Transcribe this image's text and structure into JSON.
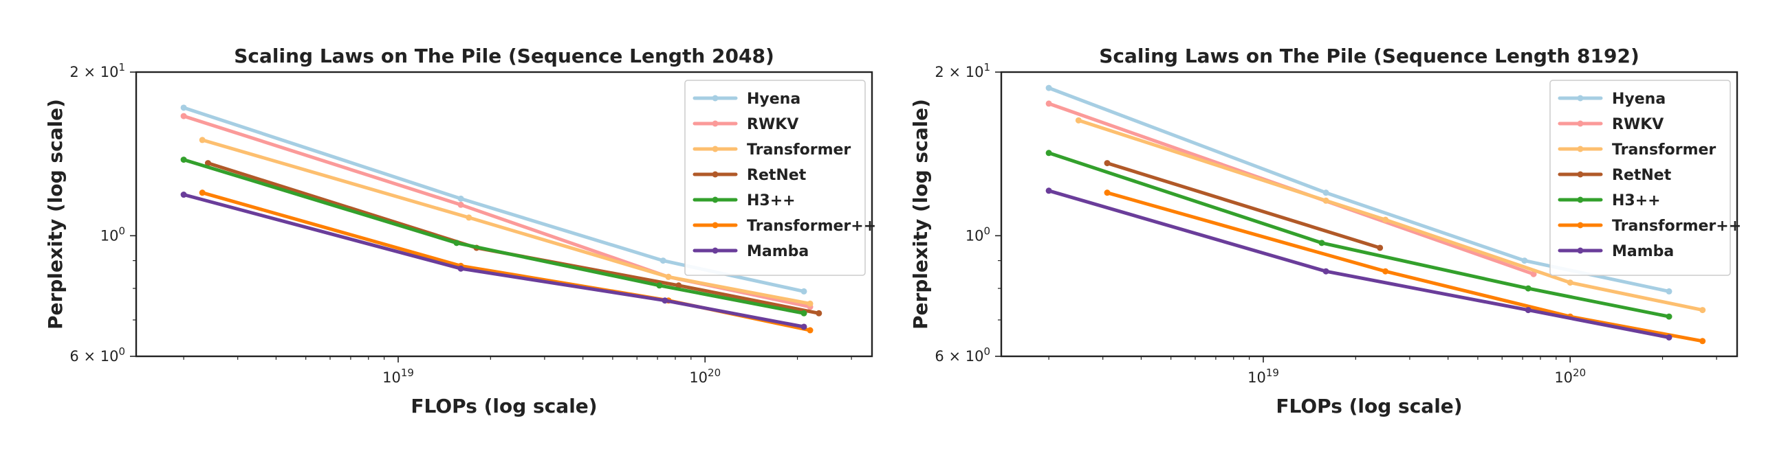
{
  "chart_data": [
    {
      "type": "line",
      "title": "Scaling Laws on The Pile (Sequence Length 2048)",
      "xlabel": "FLOPs (log scale)",
      "ylabel": "Perplexity (log scale)",
      "xscale": "log",
      "yscale": "log",
      "xlim": [
        1.4e+18,
        3.5e+20
      ],
      "ylim": [
        6,
        20
      ],
      "xticks": [
        {
          "value": 1e+19,
          "base": "10",
          "exp": "19"
        },
        {
          "value": 1e+20,
          "base": "10",
          "exp": "20"
        }
      ],
      "yticks": [
        {
          "value": 20,
          "label": "2 × 10",
          "exp": "1"
        },
        {
          "value": 10,
          "label": "10",
          "exp": "0"
        },
        {
          "value": 6,
          "label": "6 × 10",
          "exp": "0"
        }
      ],
      "legend_position": "top-right",
      "series": [
        {
          "name": "Hyena",
          "color": "#a6cee3",
          "x": [
            2e+18,
            1.6e+19,
            7.3e+19,
            2.1e+20
          ],
          "y": [
            17.2,
            11.7,
            9.0,
            7.9
          ]
        },
        {
          "name": "RWKV",
          "color": "#fb9a99",
          "x": [
            2e+18,
            1.6e+19,
            7.6e+19,
            2.2e+20
          ],
          "y": [
            16.6,
            11.4,
            8.4,
            7.4
          ]
        },
        {
          "name": "Transformer",
          "color": "#fdbf6f",
          "x": [
            2.3e+18,
            1.7e+19,
            7.6e+19,
            2.2e+20
          ],
          "y": [
            15.0,
            10.8,
            8.4,
            7.5
          ]
        },
        {
          "name": "RetNet",
          "color": "#b15928",
          "x": [
            2.4e+18,
            1.8e+19,
            8.2e+19,
            2.35e+20
          ],
          "y": [
            13.6,
            9.5,
            8.1,
            7.2
          ]
        },
        {
          "name": "H3++",
          "color": "#33a02c",
          "x": [
            2e+18,
            1.55e+19,
            7.1e+19,
            2.1e+20
          ],
          "y": [
            13.8,
            9.7,
            8.1,
            7.2
          ]
        },
        {
          "name": "Transformer++",
          "color": "#ff7f00",
          "x": [
            2.3e+18,
            1.6e+19,
            7.6e+19,
            2.2e+20
          ],
          "y": [
            12.0,
            8.8,
            7.6,
            6.7
          ]
        },
        {
          "name": "Mamba",
          "color": "#6a3d9a",
          "x": [
            2e+18,
            1.6e+19,
            7.4e+19,
            2.1e+20
          ],
          "y": [
            11.9,
            8.7,
            7.6,
            6.8
          ]
        }
      ]
    },
    {
      "type": "line",
      "title": "Scaling Laws on The Pile (Sequence Length 8192)",
      "xlabel": "FLOPs (log scale)",
      "ylabel": "Perplexity (log scale)",
      "xscale": "log",
      "yscale": "log",
      "xlim": [
        1.4e+18,
        3.5e+20
      ],
      "ylim": [
        6,
        20
      ],
      "xticks": [
        {
          "value": 1e+19,
          "base": "10",
          "exp": "19"
        },
        {
          "value": 1e+20,
          "base": "10",
          "exp": "20"
        }
      ],
      "yticks": [
        {
          "value": 20,
          "label": "2 × 10",
          "exp": "1"
        },
        {
          "value": 10,
          "label": "10",
          "exp": "0"
        },
        {
          "value": 6,
          "label": "6 × 10",
          "exp": "0"
        }
      ],
      "legend_position": "top-right",
      "series": [
        {
          "name": "Hyena",
          "color": "#a6cee3",
          "x": [
            2e+18,
            1.6e+19,
            7.1e+19,
            2.1e+20
          ],
          "y": [
            18.7,
            12.0,
            9.0,
            7.9
          ]
        },
        {
          "name": "RWKV",
          "color": "#fb9a99",
          "x": [
            2e+18,
            7.6e+19
          ],
          "y": [
            17.5,
            8.5
          ]
        },
        {
          "name": "Transformer",
          "color": "#fdbf6f",
          "x": [
            2.5e+18,
            1.6e+19,
            2.5e+19,
            1e+20,
            2.7e+20
          ],
          "y": [
            16.3,
            11.6,
            10.7,
            8.2,
            7.3
          ]
        },
        {
          "name": "RetNet",
          "color": "#b15928",
          "x": [
            3.1e+18,
            2.4e+19
          ],
          "y": [
            13.6,
            9.5
          ]
        },
        {
          "name": "H3++",
          "color": "#33a02c",
          "x": [
            2e+18,
            1.55e+19,
            7.3e+19,
            2.1e+20
          ],
          "y": [
            14.2,
            9.7,
            8.0,
            7.1
          ]
        },
        {
          "name": "Transformer++",
          "color": "#ff7f00",
          "x": [
            3.1e+18,
            2.5e+19,
            1e+20,
            2.7e+20
          ],
          "y": [
            12.0,
            8.6,
            7.1,
            6.4
          ]
        },
        {
          "name": "Mamba",
          "color": "#6a3d9a",
          "x": [
            2e+18,
            1.6e+19,
            7.3e+19,
            2.1e+20
          ],
          "y": [
            12.1,
            8.6,
            7.3,
            6.5
          ]
        }
      ]
    }
  ]
}
